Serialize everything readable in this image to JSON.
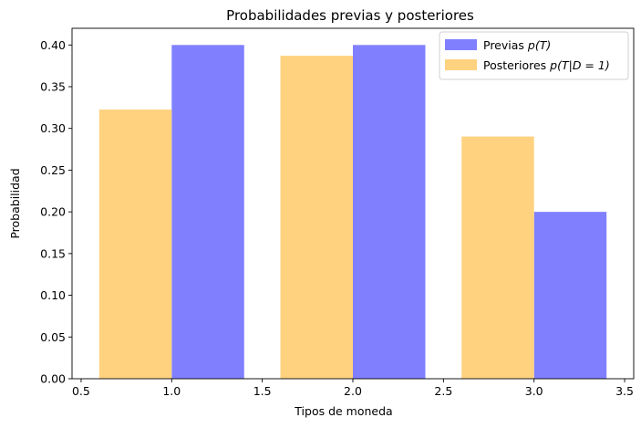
{
  "chart_data": {
    "type": "bar",
    "title": "Probabilidades previas y posteriores",
    "xlabel": "Tipos de moneda",
    "ylabel": "Probabilidad",
    "xlim": [
      0.45,
      3.55
    ],
    "ylim": [
      0,
      0.42
    ],
    "xticks": [
      "0.5",
      "1.0",
      "1.5",
      "2.0",
      "2.5",
      "3.0",
      "3.5"
    ],
    "yticks": [
      "0.00",
      "0.05",
      "0.10",
      "0.15",
      "0.20",
      "0.25",
      "0.30",
      "0.35",
      "0.40"
    ],
    "bar_width": 0.4,
    "grid": false,
    "legend_position": "top-right",
    "series": [
      {
        "name": "Previas p(T)",
        "legend_prefix": "Previas ",
        "legend_math": "p(T)",
        "color": "#8080ff",
        "x": [
          1,
          2,
          3
        ],
        "bar_align": "right-of-x",
        "values": [
          0.4,
          0.4,
          0.2
        ]
      },
      {
        "name": "Posteriores p(T|D = 1)",
        "legend_prefix": "Posteriores ",
        "legend_math": "p(T|D = 1)",
        "color": "#ffd280",
        "x": [
          1,
          2,
          3
        ],
        "bar_align": "left-of-x",
        "values": [
          0.3226,
          0.3871,
          0.2903
        ]
      }
    ]
  }
}
